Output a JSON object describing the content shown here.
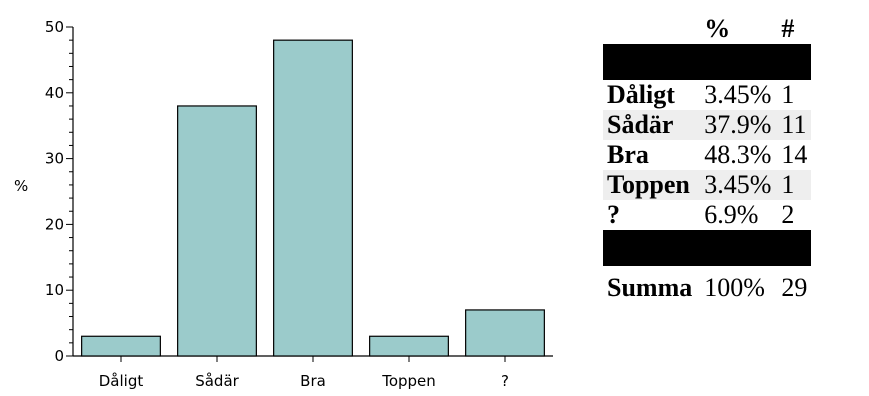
{
  "chart_data": {
    "type": "bar",
    "categories": [
      "Dåligt",
      "Sådär",
      "Bra",
      "Toppen",
      "?"
    ],
    "values": [
      3,
      38,
      48,
      3,
      7
    ],
    "title": "",
    "xlabel": "",
    "ylabel": "%",
    "ylim": [
      0,
      50
    ],
    "yticks": [
      0,
      10,
      20,
      30,
      40,
      50
    ],
    "grid": false,
    "colors": {
      "bar_fill": "#9bcbcb",
      "bar_stroke": "#000000"
    }
  },
  "table": {
    "headers": [
      "",
      "%",
      "#"
    ],
    "rows": [
      {
        "label": "Dåligt",
        "percent": "3.45%",
        "count": "1"
      },
      {
        "label": "Sådär",
        "percent": "37.9%",
        "count": "11"
      },
      {
        "label": "Bra",
        "percent": "48.3%",
        "count": "14"
      },
      {
        "label": "Toppen",
        "percent": "3.45%",
        "count": "1"
      },
      {
        "label": "?",
        "percent": "6.9%",
        "count": "2"
      }
    ],
    "summary": {
      "label": "Summa",
      "percent": "100%",
      "count": "29"
    }
  }
}
